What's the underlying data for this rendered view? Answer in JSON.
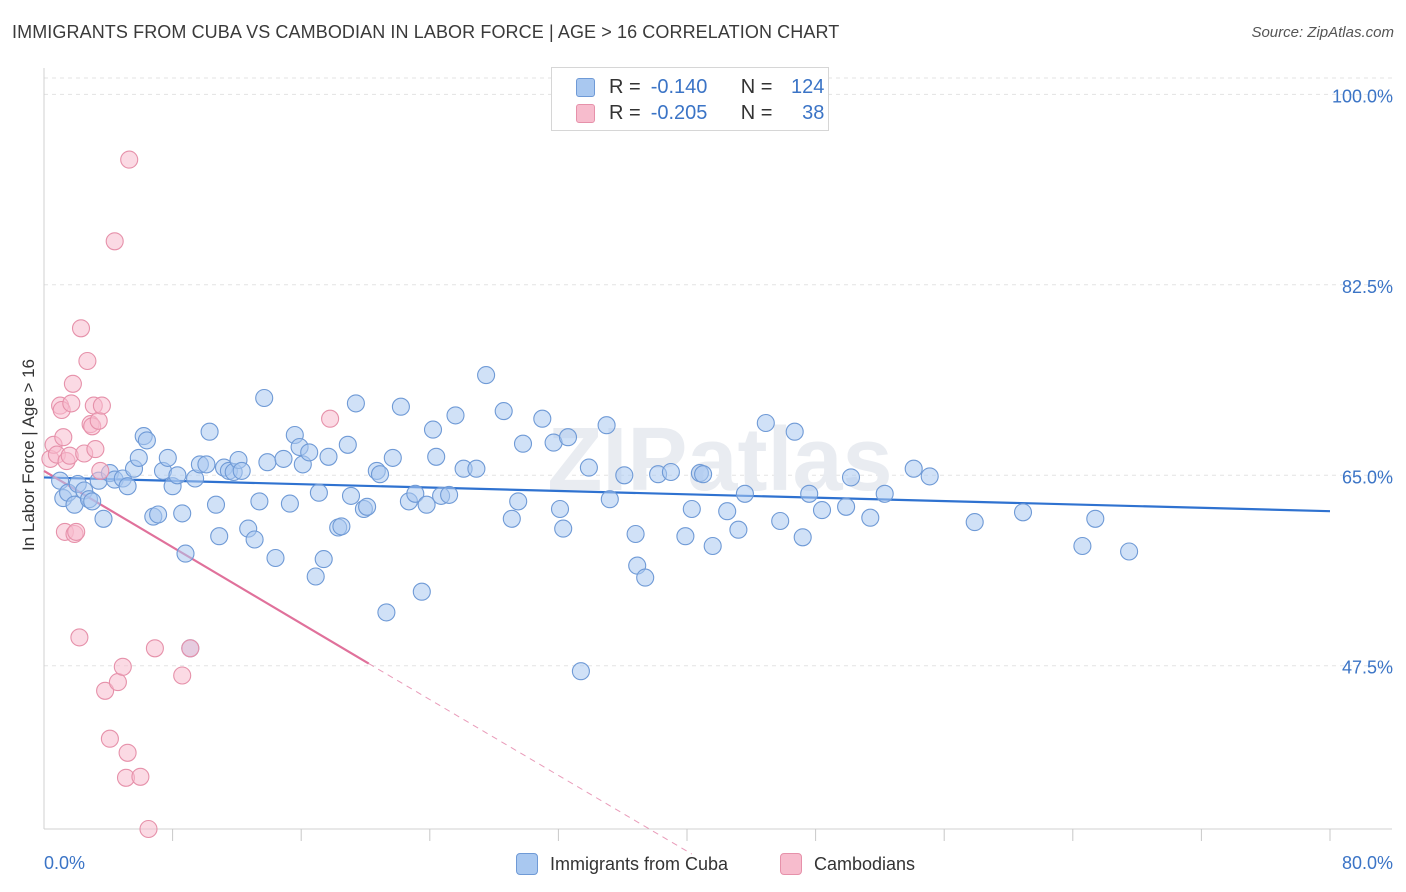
{
  "title": "IMMIGRANTS FROM CUBA VS CAMBODIAN IN LABOR FORCE | AGE > 16 CORRELATION CHART",
  "source": "Source: ZipAtlas.com",
  "watermark": "ZIPatlas",
  "colors": {
    "blue_fill": "#a9c8f0",
    "blue_stroke": "#6f9ad6",
    "blue_line": "#2f72d0",
    "pink_fill": "#f7bccd",
    "pink_stroke": "#e691aa",
    "pink_line": "#e0719b",
    "tick_text": "#3b74c6",
    "grid": "#e3e3e3"
  },
  "legend": {
    "rows": [
      {
        "r_label": "R =",
        "r_value": "-0.140",
        "n_label": "N =",
        "n_value": "124"
      },
      {
        "r_label": "R =",
        "r_value": "-0.205",
        "n_label": "N =",
        "n_value": "38"
      }
    ]
  },
  "bottom_legend": [
    "Immigrants from Cuba",
    "Cambodians"
  ],
  "chart_data": {
    "type": "scatter",
    "title": "IMMIGRANTS FROM CUBA VS CAMBODIAN IN LABOR FORCE | AGE > 16 CORRELATION CHART",
    "xlabel": "",
    "ylabel": "In Labor Force | Age > 16",
    "xlim": [
      0,
      80
    ],
    "ylim": [
      32.5,
      101.5
    ],
    "x_tick_labels": [
      "0.0%",
      "80.0%"
    ],
    "y_ticks": [
      47.5,
      65.0,
      82.5,
      100.0
    ],
    "y_tick_labels": [
      "47.5%",
      "65.0%",
      "82.5%",
      "100.0%"
    ],
    "grid": true,
    "legend_position": "top-center",
    "series": [
      {
        "name": "Immigrants from Cuba",
        "r": -0.14,
        "n": 124,
        "trend": {
          "x": [
            0,
            80
          ],
          "y": [
            64.8,
            61.7
          ]
        },
        "points": [
          [
            1,
            64.5
          ],
          [
            1.2,
            62.9
          ],
          [
            1.5,
            63.4
          ],
          [
            1.9,
            62.3
          ],
          [
            2.1,
            64.2
          ],
          [
            2.5,
            63.6
          ],
          [
            2.8,
            62.8
          ],
          [
            3,
            62.6
          ],
          [
            3.4,
            64.5
          ],
          [
            3.7,
            61.0
          ],
          [
            4.1,
            65.2
          ],
          [
            4.4,
            64.6
          ],
          [
            4.9,
            64.7
          ],
          [
            5.2,
            64.0
          ],
          [
            5.6,
            65.6
          ],
          [
            5.9,
            66.6
          ],
          [
            6.2,
            68.6
          ],
          [
            6.4,
            68.2
          ],
          [
            6.8,
            61.2
          ],
          [
            7.1,
            61.4
          ],
          [
            7.4,
            65.4
          ],
          [
            7.7,
            66.6
          ],
          [
            8,
            64.0
          ],
          [
            8.3,
            65.0
          ],
          [
            8.6,
            61.5
          ],
          [
            8.8,
            57.8
          ],
          [
            9.1,
            49.1
          ],
          [
            9.4,
            64.7
          ],
          [
            9.7,
            66.0
          ],
          [
            10.1,
            66.0
          ],
          [
            10.3,
            69.0
          ],
          [
            10.7,
            62.3
          ],
          [
            10.9,
            59.4
          ],
          [
            11.2,
            65.7
          ],
          [
            11.5,
            65.4
          ],
          [
            11.8,
            65.3
          ],
          [
            12.1,
            66.4
          ],
          [
            12.3,
            65.4
          ],
          [
            12.7,
            60.1
          ],
          [
            13.1,
            59.1
          ],
          [
            13.4,
            62.6
          ],
          [
            13.7,
            72.1
          ],
          [
            13.9,
            66.2
          ],
          [
            14.4,
            57.4
          ],
          [
            14.9,
            66.5
          ],
          [
            15.3,
            62.4
          ],
          [
            15.6,
            68.7
          ],
          [
            15.9,
            67.6
          ],
          [
            16.1,
            66.0
          ],
          [
            16.5,
            67.1
          ],
          [
            16.9,
            55.7
          ],
          [
            17.1,
            63.4
          ],
          [
            17.4,
            57.3
          ],
          [
            17.7,
            66.7
          ],
          [
            18.3,
            60.2
          ],
          [
            18.5,
            60.3
          ],
          [
            18.9,
            67.8
          ],
          [
            19.1,
            63.1
          ],
          [
            19.4,
            71.6
          ],
          [
            19.9,
            61.9
          ],
          [
            20.1,
            62.1
          ],
          [
            20.7,
            65.4
          ],
          [
            20.9,
            65.1
          ],
          [
            21.3,
            52.4
          ],
          [
            21.7,
            66.6
          ],
          [
            22.2,
            71.3
          ],
          [
            22.7,
            62.6
          ],
          [
            23.1,
            63.3
          ],
          [
            23.5,
            54.3
          ],
          [
            23.8,
            62.3
          ],
          [
            24.2,
            69.2
          ],
          [
            24.4,
            66.7
          ],
          [
            24.7,
            63.1
          ],
          [
            25.2,
            63.2
          ],
          [
            25.6,
            70.5
          ],
          [
            26.1,
            65.6
          ],
          [
            26.9,
            65.6
          ],
          [
            27.5,
            74.2
          ],
          [
            28.6,
            70.9
          ],
          [
            29.1,
            61.0
          ],
          [
            29.5,
            62.6
          ],
          [
            29.8,
            67.9
          ],
          [
            31,
            70.2
          ],
          [
            31.7,
            68.0
          ],
          [
            32.1,
            61.9
          ],
          [
            32.3,
            60.1
          ],
          [
            32.6,
            68.5
          ],
          [
            33.4,
            47.0
          ],
          [
            33.9,
            65.7
          ],
          [
            35,
            69.6
          ],
          [
            35.2,
            62.8
          ],
          [
            36.1,
            65.0
          ],
          [
            36.8,
            59.6
          ],
          [
            36.9,
            56.7
          ],
          [
            37.4,
            55.6
          ],
          [
            38.2,
            65.1
          ],
          [
            39,
            65.3
          ],
          [
            39.9,
            59.4
          ],
          [
            40.3,
            61.9
          ],
          [
            40.8,
            65.2
          ],
          [
            41,
            65.1
          ],
          [
            41.6,
            58.5
          ],
          [
            42.5,
            61.7
          ],
          [
            43.2,
            60.0
          ],
          [
            43.6,
            63.3
          ],
          [
            44.9,
            69.8
          ],
          [
            45.8,
            60.8
          ],
          [
            46.7,
            69.0
          ],
          [
            47.2,
            59.3
          ],
          [
            47.6,
            63.3
          ],
          [
            48.4,
            61.8
          ],
          [
            49.9,
            62.1
          ],
          [
            50.2,
            64.8
          ],
          [
            51.4,
            61.1
          ],
          [
            52.3,
            63.3
          ],
          [
            54.1,
            65.6
          ],
          [
            55.1,
            64.9
          ],
          [
            57.9,
            60.7
          ],
          [
            60.9,
            61.6
          ],
          [
            65.4,
            61.0
          ],
          [
            64.6,
            58.5
          ],
          [
            67.5,
            58.0
          ]
        ]
      },
      {
        "name": "Cambodians",
        "r": -0.205,
        "n": 38,
        "trend": {
          "x": [
            0,
            20.2
          ],
          "y": [
            65.4,
            47.7
          ]
        },
        "trend_dashed": {
          "x": [
            20.2,
            40.3
          ],
          "y": [
            47.7,
            30.2
          ]
        },
        "points": [
          [
            0.4,
            66.5
          ],
          [
            0.6,
            67.8
          ],
          [
            0.8,
            66.9
          ],
          [
            1,
            71.4
          ],
          [
            1.1,
            71.0
          ],
          [
            1.2,
            68.5
          ],
          [
            1.3,
            59.8
          ],
          [
            1.4,
            66.3
          ],
          [
            1.6,
            66.8
          ],
          [
            1.7,
            71.6
          ],
          [
            1.8,
            73.4
          ],
          [
            1.9,
            59.6
          ],
          [
            2,
            59.8
          ],
          [
            2.2,
            50.1
          ],
          [
            2.3,
            78.5
          ],
          [
            2.5,
            67.0
          ],
          [
            2.7,
            75.5
          ],
          [
            2.9,
            69.7
          ],
          [
            3,
            69.5
          ],
          [
            3.1,
            71.4
          ],
          [
            3.2,
            67.4
          ],
          [
            3.4,
            70.0
          ],
          [
            3.5,
            65.4
          ],
          [
            3.6,
            71.4
          ],
          [
            3.8,
            45.2
          ],
          [
            4.1,
            40.8
          ],
          [
            4.4,
            86.5
          ],
          [
            4.6,
            46.0
          ],
          [
            4.9,
            47.4
          ],
          [
            5.3,
            94.0
          ],
          [
            5.1,
            37.2
          ],
          [
            5.2,
            39.5
          ],
          [
            6,
            37.3
          ],
          [
            6.5,
            32.5
          ],
          [
            6.9,
            49.1
          ],
          [
            8.6,
            46.6
          ],
          [
            9.1,
            49.1
          ],
          [
            17.8,
            70.2
          ]
        ]
      }
    ]
  }
}
